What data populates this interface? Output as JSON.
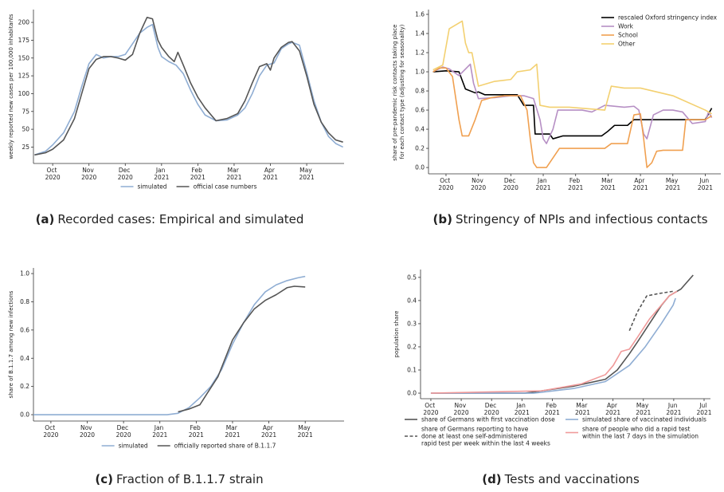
{
  "chart_data": [
    {
      "type": "line",
      "caption_label": "(a)",
      "caption": "Recorded cases: Empirical and simulated",
      "ylabel": "weekly reported new cases per 100,000 inhabitants",
      "xlim": [
        9.47,
        18.03
      ],
      "ylim": [
        2,
        218
      ],
      "xticks": [
        {
          "value": 10,
          "label": "Oct 2020"
        },
        {
          "value": 11,
          "label": "Nov 2020"
        },
        {
          "value": 12,
          "label": "Dec 2020"
        },
        {
          "value": 13,
          "label": "Jan 2021"
        },
        {
          "value": 14,
          "label": "Feb 2021"
        },
        {
          "value": 15,
          "label": "Mar 2021"
        },
        {
          "value": 16,
          "label": "Apr 2021"
        },
        {
          "value": 17,
          "label": "May 2021"
        }
      ],
      "yticks": [
        25,
        50,
        75,
        100,
        125,
        150,
        175,
        200
      ],
      "legend": "below",
      "series": [
        {
          "name": "simulated",
          "color": "#8fadd3",
          "x": [
            9.5,
            9.8,
            10,
            10.3,
            10.6,
            10.8,
            11,
            11.2,
            11.4,
            11.6,
            11.8,
            12,
            12.2,
            12.4,
            12.6,
            12.75,
            12.9,
            13,
            13.2,
            13.4,
            13.6,
            13.8,
            14,
            14.2,
            14.5,
            14.8,
            15.1,
            15.3,
            15.5,
            15.7,
            15.9,
            16.1,
            16.3,
            16.5,
            16.6,
            16.8,
            17,
            17.2,
            17.4,
            17.6,
            17.8,
            18
          ],
          "values": [
            14,
            19,
            28,
            45,
            75,
            110,
            142,
            155,
            150,
            152,
            152,
            155,
            170,
            185,
            193,
            197,
            165,
            152,
            145,
            140,
            128,
            105,
            85,
            70,
            62,
            63,
            70,
            80,
            100,
            125,
            140,
            143,
            163,
            170,
            172,
            168,
            130,
            90,
            60,
            40,
            30,
            25
          ]
        },
        {
          "name": "official case numbers",
          "color": "#555555",
          "x": [
            9.5,
            9.8,
            10,
            10.3,
            10.6,
            10.8,
            11,
            11.2,
            11.4,
            11.6,
            11.8,
            12,
            12.2,
            12.4,
            12.6,
            12.75,
            12.9,
            13,
            13.2,
            13.35,
            13.45,
            13.6,
            13.8,
            14,
            14.2,
            14.5,
            14.8,
            15.1,
            15.3,
            15.5,
            15.7,
            15.9,
            16,
            16.1,
            16.3,
            16.5,
            16.6,
            16.8,
            17,
            17.2,
            17.4,
            17.6,
            17.8,
            18
          ],
          "values": [
            14,
            17,
            22,
            35,
            65,
            100,
            135,
            148,
            152,
            152,
            150,
            147,
            155,
            185,
            207,
            205,
            175,
            165,
            152,
            145,
            158,
            140,
            115,
            95,
            80,
            62,
            65,
            72,
            90,
            115,
            138,
            142,
            133,
            150,
            165,
            172,
            173,
            160,
            125,
            85,
            60,
            45,
            35,
            32
          ]
        }
      ]
    },
    {
      "type": "line",
      "caption_label": "(b)",
      "caption": "Stringency of NPIs and infectious contacts",
      "ylabel": "share of pre-pandemic risk contacts taking place\nfor each contact type (adjusting for seasonality)",
      "xlim": [
        9.46,
        18.48
      ],
      "ylim": [
        -0.066,
        1.65
      ],
      "xticks": [
        {
          "value": 10,
          "label": "Oct 2020"
        },
        {
          "value": 11,
          "label": "Nov 2020"
        },
        {
          "value": 12,
          "label": "Dec 2020"
        },
        {
          "value": 13,
          "label": "Jan 2021"
        },
        {
          "value": 14,
          "label": "Feb 2021"
        },
        {
          "value": 15,
          "label": "Mar 2021"
        },
        {
          "value": 16,
          "label": "Apr 2021"
        },
        {
          "value": 17,
          "label": "May 2021"
        },
        {
          "value": 18,
          "label": "Jun 2021"
        }
      ],
      "yticks": [
        {
          "value": 0,
          "label": "0.0"
        },
        0.2,
        0.4,
        0.6,
        0.8,
        {
          "value": 1,
          "label": "1.0"
        },
        1.2,
        1.4,
        1.6
      ],
      "legend": "upper right",
      "series": [
        {
          "name": "rescaled Oxford stringency index",
          "color": "#000000",
          "x": [
            9.6,
            10,
            10.4,
            10.6,
            10.9,
            11,
            11.2,
            12.2,
            12.4,
            12.7,
            12.75,
            13.2,
            13.3,
            13.6,
            14.8,
            15,
            15.2,
            15.6,
            15.8,
            18,
            18.2
          ],
          "values": [
            1.0,
            1.01,
            1.0,
            0.82,
            0.78,
            0.79,
            0.76,
            0.76,
            0.65,
            0.65,
            0.35,
            0.35,
            0.3,
            0.33,
            0.33,
            0.38,
            0.44,
            0.44,
            0.5,
            0.5,
            0.62
          ]
        },
        {
          "name": "Work",
          "color": "#b68fc4",
          "x": [
            9.6,
            9.9,
            10.1,
            10.4,
            10.75,
            10.85,
            11,
            11.5,
            12,
            12.4,
            12.7,
            12.9,
            13,
            13.1,
            13.3,
            13.45,
            13.8,
            14.2,
            14.5,
            14.9,
            15.5,
            15.8,
            15.95,
            16.1,
            16.2,
            16.4,
            16.7,
            17,
            17.3,
            17.6,
            17.8,
            18,
            18.1,
            18.2
          ],
          "values": [
            1.0,
            1.05,
            1.03,
            0.96,
            1.08,
            0.88,
            0.72,
            0.73,
            0.75,
            0.75,
            0.72,
            0.5,
            0.3,
            0.25,
            0.4,
            0.6,
            0.6,
            0.6,
            0.58,
            0.65,
            0.63,
            0.64,
            0.6,
            0.35,
            0.3,
            0.55,
            0.6,
            0.6,
            0.58,
            0.46,
            0.47,
            0.48,
            0.58,
            0.52
          ]
        },
        {
          "name": "School",
          "color": "#f0a050",
          "x": [
            9.6,
            9.8,
            10,
            10.2,
            10.4,
            10.5,
            10.7,
            10.9,
            11.1,
            11.4,
            11.8,
            12,
            12.3,
            12.5,
            12.6,
            12.7,
            12.8,
            13.1,
            13.3,
            13.5,
            14,
            14.9,
            15.1,
            15.6,
            15.8,
            16,
            16.1,
            16.2,
            16.35,
            16.5,
            16.7,
            17.3,
            17.4,
            18,
            18.2
          ],
          "values": [
            1.0,
            1.04,
            1.04,
            0.95,
            0.5,
            0.33,
            0.33,
            0.5,
            0.7,
            0.73,
            0.75,
            0.75,
            0.75,
            0.6,
            0.3,
            0.05,
            0.0,
            0.0,
            0.1,
            0.2,
            0.2,
            0.2,
            0.25,
            0.25,
            0.55,
            0.56,
            0.3,
            0.0,
            0.05,
            0.17,
            0.18,
            0.18,
            0.5,
            0.5,
            0.54
          ]
        },
        {
          "name": "Other",
          "color": "#f3d070",
          "x": [
            9.6,
            9.9,
            10.1,
            10.5,
            10.6,
            10.7,
            10.8,
            11,
            11.5,
            12,
            12.2,
            12.6,
            12.8,
            12.9,
            13.2,
            13.8,
            14.9,
            15.1,
            15.5,
            16,
            17,
            18,
            18.2
          ],
          "values": [
            1.02,
            1.07,
            1.45,
            1.53,
            1.3,
            1.2,
            1.2,
            0.85,
            0.9,
            0.92,
            1.0,
            1.02,
            1.08,
            0.65,
            0.63,
            0.63,
            0.6,
            0.85,
            0.83,
            0.83,
            0.75,
            0.6,
            0.56
          ]
        }
      ]
    },
    {
      "type": "line",
      "caption_label": "(c)",
      "caption": "Fraction of B.1.1.7 strain",
      "ylabel": "share of B.1.1.7 among new infections",
      "xlim": [
        9.52,
        18.07
      ],
      "ylim": [
        -0.045,
        1.04
      ],
      "xticks": [
        {
          "value": 10,
          "label": "Oct 2020"
        },
        {
          "value": 11,
          "label": "Nov 2020"
        },
        {
          "value": 12,
          "label": "Dec 2020"
        },
        {
          "value": 13,
          "label": "Jan 2021"
        },
        {
          "value": 14,
          "label": "Feb 2021"
        },
        {
          "value": 15,
          "label": "Mar 2021"
        },
        {
          "value": 16,
          "label": "Apr 2021"
        },
        {
          "value": 17,
          "label": "May 2021"
        }
      ],
      "yticks": [
        {
          "value": 0,
          "label": "0.0"
        },
        0.2,
        0.4,
        0.6,
        0.8,
        {
          "value": 1,
          "label": "1.0"
        }
      ],
      "legend": "below",
      "series": [
        {
          "name": "simulated",
          "color": "#8fadd3",
          "x": [
            9.52,
            13.2,
            13.5,
            13.8,
            14.1,
            14.4,
            14.7,
            15,
            15.3,
            15.6,
            15.9,
            16.2,
            16.5,
            16.8,
            17
          ],
          "values": [
            0,
            0,
            0.01,
            0.05,
            0.12,
            0.2,
            0.32,
            0.5,
            0.65,
            0.78,
            0.87,
            0.92,
            0.95,
            0.97,
            0.98
          ]
        },
        {
          "name": "officially reported share of B.1.1.7",
          "color": "#555555",
          "x": [
            13.5,
            13.8,
            14.1,
            14.3,
            14.6,
            14.8,
            15,
            15.3,
            15.6,
            15.9,
            16.2,
            16.5,
            16.7,
            17
          ],
          "values": [
            0.02,
            0.04,
            0.07,
            0.15,
            0.27,
            0.4,
            0.53,
            0.65,
            0.75,
            0.81,
            0.85,
            0.9,
            0.91,
            0.905
          ]
        }
      ]
    },
    {
      "type": "line",
      "caption_label": "(d)",
      "caption": "Tests and vaccinations",
      "ylabel": "population share",
      "xlim": [
        9.66,
        19.21
      ],
      "ylim": [
        -0.024,
        0.534
      ],
      "xticks": [
        {
          "value": 10,
          "label": "Oct 2020"
        },
        {
          "value": 11,
          "label": "Nov 2020"
        },
        {
          "value": 12,
          "label": "Dec 2020"
        },
        {
          "value": 13,
          "label": "Jan 2021"
        },
        {
          "value": 14,
          "label": "Feb 2021"
        },
        {
          "value": 15,
          "label": "Mar 2021"
        },
        {
          "value": 16,
          "label": "Apr 2021"
        },
        {
          "value": 17,
          "label": "May 2021"
        },
        {
          "value": 18,
          "label": "Jun 2021"
        },
        {
          "value": 19,
          "label": "Jul 2021"
        }
      ],
      "yticks": [
        {
          "value": 0,
          "label": "0.0"
        },
        0.1,
        0.2,
        0.3,
        0.4,
        0.5
      ],
      "legend": "below",
      "legend_columns": 2,
      "series": [
        {
          "name": "share of Germans with first vaccination dose",
          "color": "#555555",
          "x": [
            10,
            13.1,
            13.65,
            14.7,
            15.75,
            16.14,
            16.54,
            16.8,
            17.2,
            17.6,
            17.85,
            18.24,
            18.64
          ],
          "values": [
            0,
            0,
            0.01,
            0.03,
            0.06,
            0.1,
            0.17,
            0.22,
            0.3,
            0.38,
            0.42,
            0.45,
            0.51
          ]
        },
        {
          "name": "simulated share of vaccinated individuals",
          "color": "#8fadd3",
          "x": [
            10,
            13.39,
            14.7,
            15.75,
            16.54,
            17.06,
            17.59,
            17.98,
            18.06
          ],
          "values": [
            0,
            0,
            0.02,
            0.05,
            0.12,
            0.2,
            0.3,
            0.38,
            0.41
          ]
        },
        {
          "name": "share of Germans reporting to have\ndone at least one self-administered\nrapid test per week within the last 4 weeks",
          "color": "#555555",
          "dash": true,
          "x": [
            16.54,
            16.8,
            17.11,
            17.5,
            17.98
          ],
          "values": [
            0.27,
            0.35,
            0.42,
            0.43,
            0.44
          ]
        },
        {
          "name": "share of people who did a rapid test\nwithin the last 7 days in the simulation",
          "color": "#f09a9a",
          "x": [
            10,
            13.65,
            14.96,
            15.75,
            16.01,
            16.27,
            16.54,
            16.8,
            17.2,
            17.59,
            17.85,
            18.11
          ],
          "values": [
            0,
            0.01,
            0.04,
            0.08,
            0.12,
            0.18,
            0.19,
            0.24,
            0.32,
            0.38,
            0.42,
            0.44
          ]
        }
      ]
    }
  ]
}
